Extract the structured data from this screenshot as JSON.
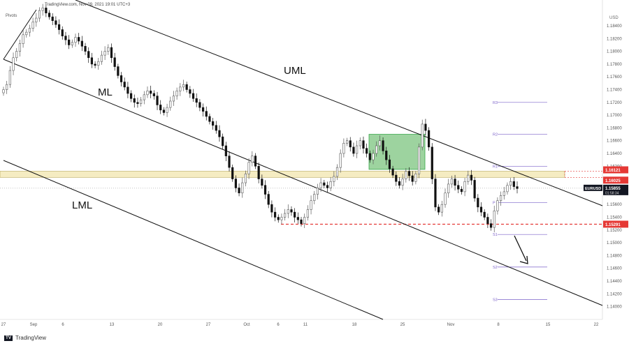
{
  "header": {
    "info": "TradingView.com, Nov 09, 2021 19:01 UTC+3"
  },
  "indicator": {
    "label": "Pivots"
  },
  "footer": {
    "brand": "TradingView",
    "logo_text": "TV"
  },
  "colors": {
    "up": "#5a5a5a",
    "down": "#111111",
    "pivot": "#7b61c9",
    "zone": "#f5ecc2",
    "box": "#39a84a",
    "support": "#e53935",
    "label_red": "#e53935",
    "price_tag": "#131722"
  },
  "chart_data": {
    "type": "candlestick",
    "symbol": "EURUSD",
    "price_axis": {
      "ticks": [
        "1.18400",
        "1.18200",
        "1.18000",
        "1.17800",
        "1.17600",
        "1.17400",
        "1.17200",
        "1.17000",
        "1.16800",
        "1.16600",
        "1.16400",
        "1.16200",
        "1.15600",
        "1.15400",
        "1.15200",
        "1.15000",
        "1.14800",
        "1.14600",
        "1.14400",
        "1.14200",
        "1.14000"
      ],
      "top_label": "USD",
      "ylim": [
        1.139,
        1.186
      ]
    },
    "time_axis": [
      "27",
      "Sep",
      "6",
      "13",
      "20",
      "27",
      "Oct",
      "6",
      "11",
      "18",
      "25",
      "Nov",
      "8",
      "15",
      "22"
    ],
    "current_price": {
      "symbol": "EURUSD",
      "value": "1.15855",
      "countdown": "01:58:34"
    },
    "levels": [
      {
        "name": "resistance-upper",
        "value": "1.16121"
      },
      {
        "name": "resistance-lower",
        "value": "1.16025"
      },
      {
        "name": "support",
        "value": "1.15291"
      }
    ],
    "pivots": [
      "R3",
      "R2",
      "R1",
      "P",
      "S1",
      "S2",
      "S3"
    ],
    "channel_labels": [
      "UML",
      "ML",
      "LML"
    ],
    "annotations": {
      "arrow": "down"
    }
  }
}
